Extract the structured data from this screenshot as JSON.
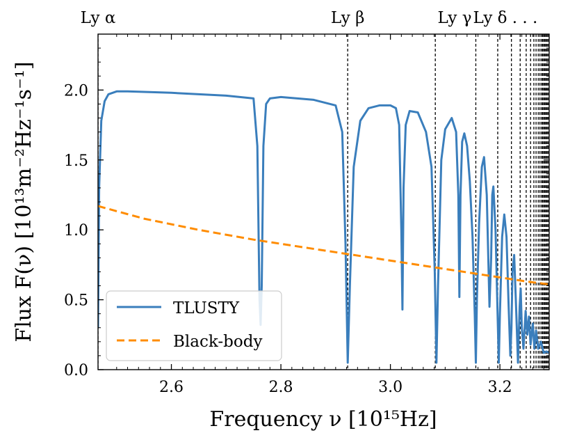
{
  "chart_data": {
    "type": "line",
    "xlabel": "Frequency ν [10¹⁵Hz]",
    "ylabel": "Flux F(ν) [10¹³m⁻²Hz⁻¹s⁻¹]",
    "xlim": [
      2.466,
      3.29
    ],
    "ylim": [
      0,
      2.4
    ],
    "x_ticks": [
      "2.6",
      "2.8",
      "3.0",
      "3.2"
    ],
    "y_ticks": [
      "0.0",
      "0.5",
      "1.0",
      "1.5",
      "2.0"
    ],
    "grid": false,
    "legend_position": "lower-left",
    "series": [
      {
        "name": "TLUSTY",
        "style": "solid",
        "color": "#3a7ebc",
        "x": [
          2.466,
          2.468,
          2.472,
          2.478,
          2.485,
          2.5,
          2.52,
          2.6,
          2.7,
          2.75,
          2.757,
          2.761,
          2.763,
          2.765,
          2.768,
          2.773,
          2.78,
          2.8,
          2.86,
          2.9,
          2.912,
          2.918,
          2.922,
          2.926,
          2.933,
          2.945,
          2.96,
          2.98,
          3.0,
          3.01,
          3.016,
          3.02,
          3.022,
          3.024,
          3.028,
          3.035,
          3.05,
          3.065,
          3.075,
          3.081,
          3.084,
          3.087,
          3.093,
          3.1,
          3.112,
          3.12,
          3.124,
          3.126,
          3.128,
          3.131,
          3.135,
          3.14,
          3.145,
          3.15,
          3.154,
          3.156,
          3.158,
          3.162,
          3.167,
          3.171,
          3.176,
          3.181,
          3.184,
          3.186,
          3.188,
          3.192,
          3.196,
          3.198,
          3.2,
          3.204,
          3.208,
          3.212,
          3.216,
          3.219,
          3.221,
          3.223,
          3.226,
          3.229,
          3.233,
          3.236,
          3.238,
          3.24,
          3.243,
          3.247,
          3.25,
          3.253,
          3.256,
          3.26,
          3.263,
          3.266,
          3.27,
          3.275,
          3.28,
          3.285,
          3.29
        ],
        "y": [
          0.3,
          1.3,
          1.78,
          1.92,
          1.97,
          1.99,
          1.99,
          1.98,
          1.96,
          1.94,
          1.6,
          0.5,
          0.32,
          0.6,
          1.6,
          1.9,
          1.94,
          1.95,
          1.93,
          1.89,
          1.7,
          0.9,
          0.05,
          0.6,
          1.45,
          1.78,
          1.87,
          1.89,
          1.89,
          1.87,
          1.75,
          1.0,
          0.43,
          1.3,
          1.75,
          1.85,
          1.84,
          1.7,
          1.45,
          0.7,
          0.05,
          0.6,
          1.5,
          1.72,
          1.8,
          1.7,
          1.25,
          0.52,
          1.25,
          1.63,
          1.69,
          1.6,
          1.35,
          0.95,
          0.4,
          0.05,
          0.5,
          1.05,
          1.45,
          1.52,
          1.25,
          0.45,
          0.8,
          1.25,
          1.31,
          1.0,
          0.35,
          0.05,
          0.4,
          0.95,
          1.11,
          0.95,
          0.45,
          0.1,
          0.3,
          0.7,
          0.82,
          0.5,
          0.05,
          0.45,
          0.58,
          0.3,
          0.15,
          0.42,
          0.25,
          0.38,
          0.18,
          0.33,
          0.15,
          0.28,
          0.15,
          0.2,
          0.12,
          0.13,
          0.12
        ]
      },
      {
        "name": "Black-body",
        "style": "dashed",
        "color": "#ff8c00",
        "x": [
          2.466,
          2.55,
          2.65,
          2.75,
          2.85,
          2.95,
          3.05,
          3.15,
          3.25,
          3.29
        ],
        "y": [
          1.17,
          1.08,
          1.0,
          0.93,
          0.87,
          0.81,
          0.75,
          0.69,
          0.63,
          0.61
        ]
      }
    ],
    "lyman_lines": {
      "positions": [
        2.466,
        2.922,
        3.082,
        3.156,
        3.196,
        3.221,
        3.237,
        3.248,
        3.256,
        3.262,
        3.266,
        3.27,
        3.273,
        3.276,
        3.278,
        3.28,
        3.282,
        3.284,
        3.286,
        3.288
      ],
      "labels": [
        {
          "text": "Ly α",
          "x": 2.466
        },
        {
          "text": "Ly β",
          "x": 2.922
        },
        {
          "text": "Ly γ",
          "x": 3.082
        },
        {
          "text": "Ly δ . . .",
          "x": 3.156
        }
      ]
    }
  }
}
